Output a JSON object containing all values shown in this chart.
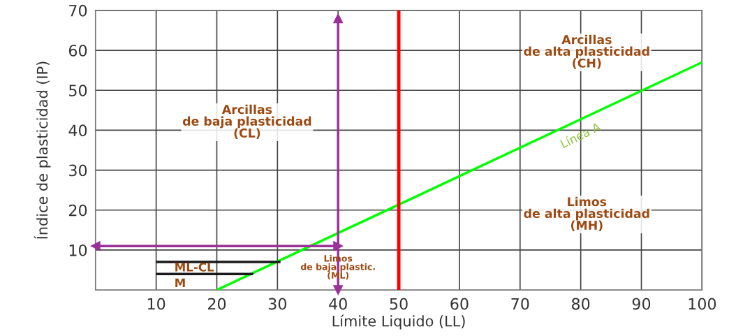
{
  "chart_data": {
    "type": "line",
    "xlabel": "Límite Liquido (LL)",
    "ylabel": "Índice de plasticidad (IP)",
    "xlim": [
      0,
      100
    ],
    "xticks": [
      10,
      20,
      30,
      40,
      50,
      60,
      70,
      80,
      90,
      100
    ],
    "ylim": [
      0,
      70
    ],
    "yticks": [
      10,
      20,
      30,
      40,
      50,
      60,
      70
    ],
    "grid": true,
    "legend": false,
    "series": [
      {
        "type": "line",
        "color": "#00ff00",
        "x": [
          20,
          100
        ],
        "values": [
          0,
          57
        ]
      },
      {
        "type": "line",
        "color": "#1a1a1a",
        "x": [
          10,
          30.5
        ],
        "values": [
          7,
          7
        ]
      },
      {
        "type": "line",
        "color": "#1a1a1a",
        "x": [
          10,
          26
        ],
        "values": [
          4,
          4
        ]
      },
      {
        "type": "line",
        "marker": "triangle",
        "color": "#9b309b",
        "x": [
          40,
          40
        ],
        "values": [
          0,
          68
        ]
      },
      {
        "type": "line",
        "marker": "triangle",
        "color": "#9b309b",
        "x": [
          0,
          40
        ],
        "values": [
          11,
          11
        ]
      }
    ],
    "ref_lines": [
      {
        "axis": "x",
        "value": 50,
        "color": "#ff0000"
      }
    ],
    "annotations": [
      "Arcillas\nde baja plasticidad\n(CL)",
      "Arcillas\nde alta plasticidad\n(CH)",
      "Limos\nde alta plasticidad\n(MH)",
      "Limos\nde baja plastic.\n(ML)",
      "ML-CL",
      "M",
      "Línea A"
    ]
  }
}
